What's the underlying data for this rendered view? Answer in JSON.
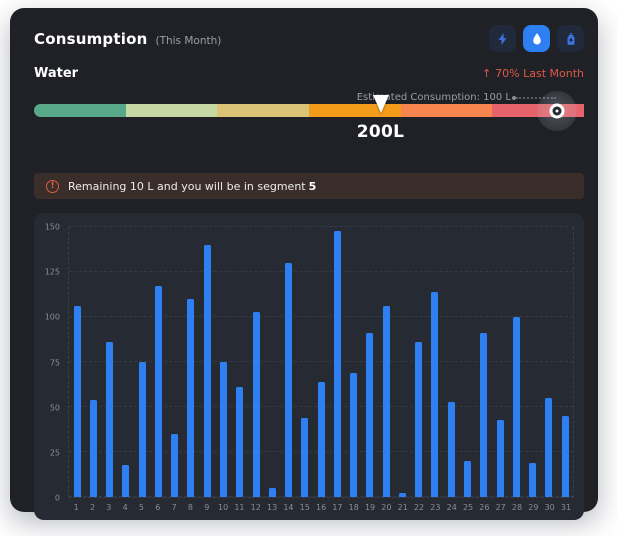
{
  "header": {
    "title": "Consumption",
    "subtitle": "(This Month)"
  },
  "toolbar": {
    "buttons": [
      {
        "label": "electricity",
        "icon": "lightning-icon",
        "active": false
      },
      {
        "label": "water",
        "icon": "water-drop-icon",
        "active": true
      },
      {
        "label": "gas",
        "icon": "gas-bottle-icon",
        "active": false
      }
    ]
  },
  "water_section": {
    "label": "Water",
    "trend_arrow": "↑",
    "trend_text": "70% Last Month",
    "trend_color": "#dc5a45"
  },
  "gauge": {
    "segment_colors": [
      "#58a98a",
      "#c6d9a4",
      "#dcc476",
      "#f39c1c",
      "#f9854e",
      "#e7636b"
    ],
    "marker_label": "200L",
    "marker_position_pct": 63,
    "estimated_label": "Estimated Consumption: 100 L",
    "indicator_position_pct": 95
  },
  "notice": {
    "icon": "alert-circle-icon",
    "icon_glyph": "!",
    "text_prefix": "Remaining 10 L and you will be in segment",
    "segment_number": "5"
  },
  "chart_data": {
    "type": "bar",
    "title": "",
    "xlabel": "",
    "ylabel": "",
    "categories": [
      1,
      2,
      3,
      4,
      5,
      6,
      7,
      8,
      9,
      10,
      11,
      12,
      13,
      14,
      15,
      16,
      17,
      18,
      19,
      20,
      21,
      22,
      23,
      24,
      25,
      26,
      27,
      28,
      29,
      30,
      31
    ],
    "values": [
      106,
      54,
      86,
      18,
      75,
      117,
      35,
      110,
      140,
      75,
      61,
      103,
      5,
      130,
      44,
      64,
      148,
      69,
      91,
      106,
      2,
      86,
      114,
      53,
      20,
      91,
      43,
      100,
      19,
      55,
      45
    ],
    "yticks": [
      0,
      25,
      50,
      75,
      100,
      125,
      150
    ],
    "ylim": [
      0,
      150
    ],
    "bar_color": "#2e7ff2",
    "grid": true,
    "legend": null
  },
  "colors": {
    "page_bg": "#ffffff",
    "card_bg": "#1f2127",
    "chart_panel_bg": "#262a33",
    "accent_blue": "#2e7ff2",
    "accent_red": "#dc5a45",
    "muted_text": "#9aa0a6"
  }
}
